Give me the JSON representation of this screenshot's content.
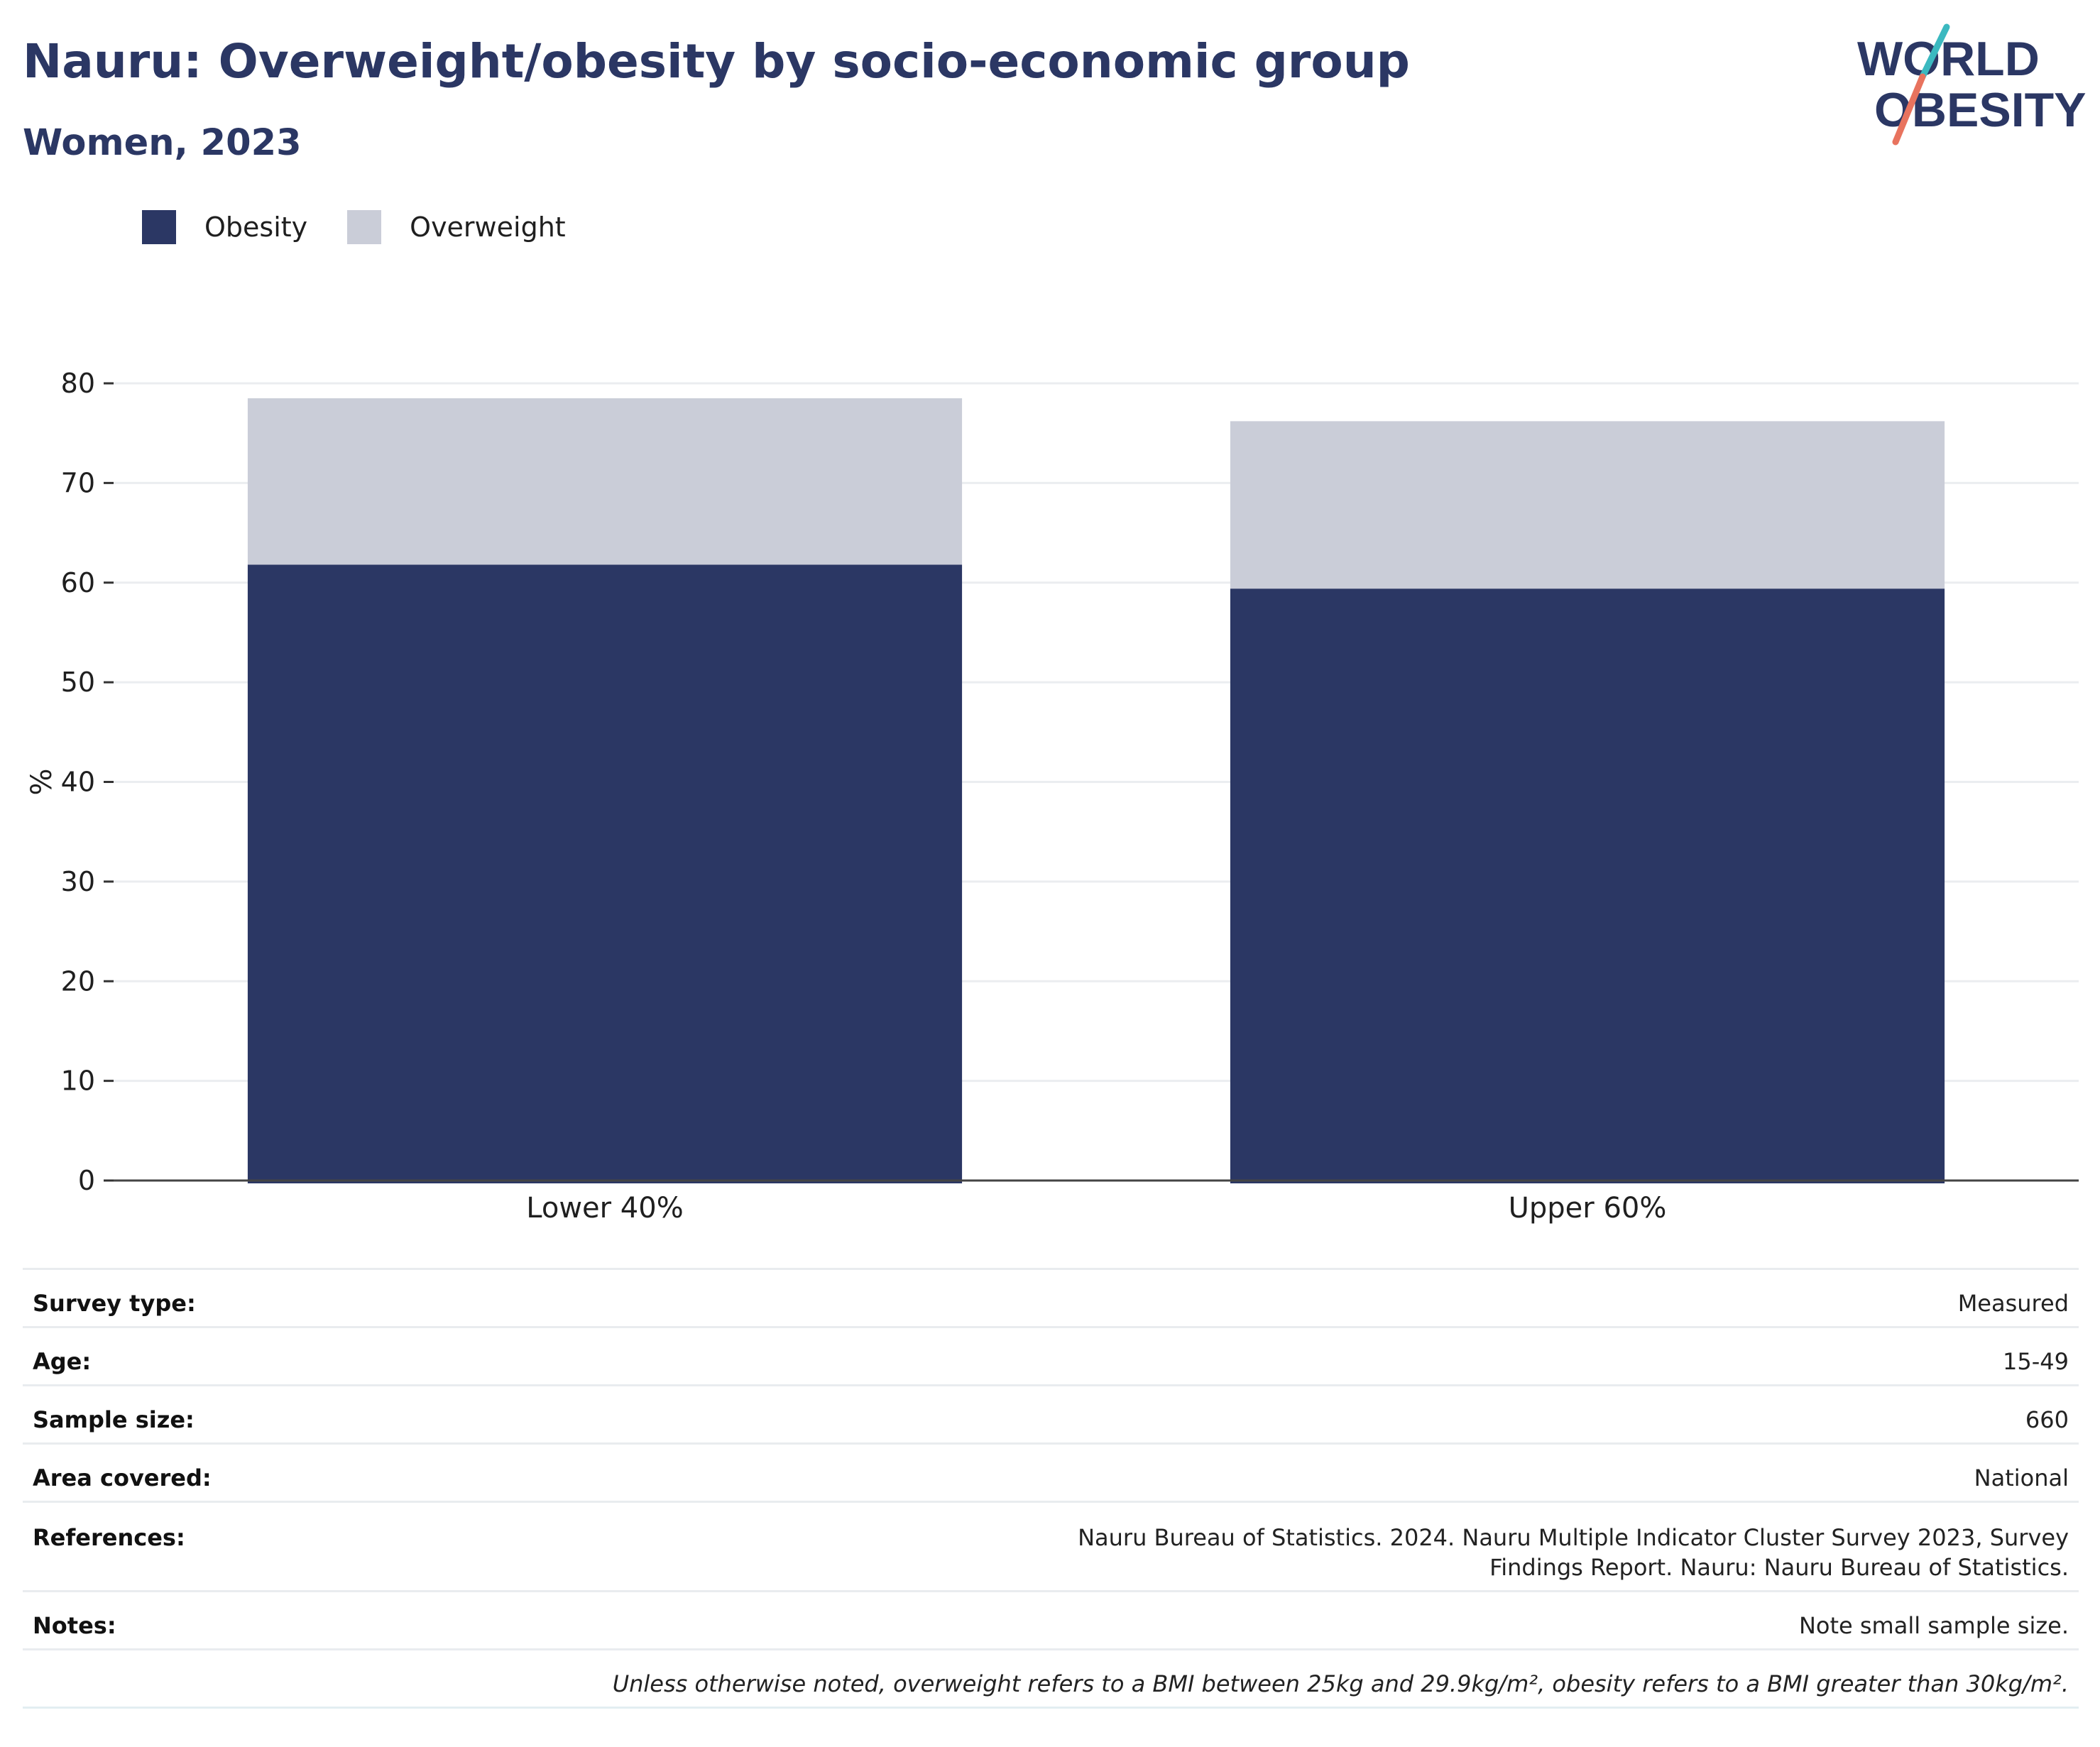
{
  "header": {
    "title": "Nauru: Overweight/obesity by socio-economic group",
    "subtitle": "Women, 2023"
  },
  "logo": {
    "line1": "WORLD",
    "line2": "OBESITY"
  },
  "colors": {
    "obesity": "#2b3764",
    "overweight": "#cacdd8",
    "accent_teal": "#3bb9c0",
    "accent_coral": "#e8735e"
  },
  "legend": [
    {
      "label": "Obesity",
      "color": "#2b3764"
    },
    {
      "label": "Overweight",
      "color": "#cacdd8"
    }
  ],
  "chart_data": {
    "type": "bar",
    "stacked": true,
    "categories": [
      "Lower 40%",
      "Upper 60%"
    ],
    "series": [
      {
        "name": "Obesity",
        "values": [
          61.8,
          59.4
        ]
      },
      {
        "name": "Overweight",
        "values": [
          16.7,
          16.8
        ]
      }
    ],
    "ylabel": "%",
    "ylim": [
      0,
      80
    ],
    "yticks": [
      0,
      10,
      20,
      30,
      40,
      50,
      60,
      70,
      80
    ],
    "grid": true,
    "legend_position": "top-left"
  },
  "meta": [
    {
      "key": "Survey type:",
      "value": "Measured"
    },
    {
      "key": "Age:",
      "value": "15-49"
    },
    {
      "key": "Sample size:",
      "value": "660"
    },
    {
      "key": "Area covered:",
      "value": "National"
    },
    {
      "key": "References:",
      "value": "Nauru Bureau of Statistics. 2024. Nauru Multiple Indicator Cluster Survey 2023, Survey Findings Report. Nauru: Nauru Bureau of Statistics."
    },
    {
      "key": "Notes:",
      "value": "Note small sample size."
    }
  ],
  "footnote": "Unless otherwise noted, overweight refers to a BMI between 25kg and 29.9kg/m², obesity refers to a BMI greater than 30kg/m²."
}
